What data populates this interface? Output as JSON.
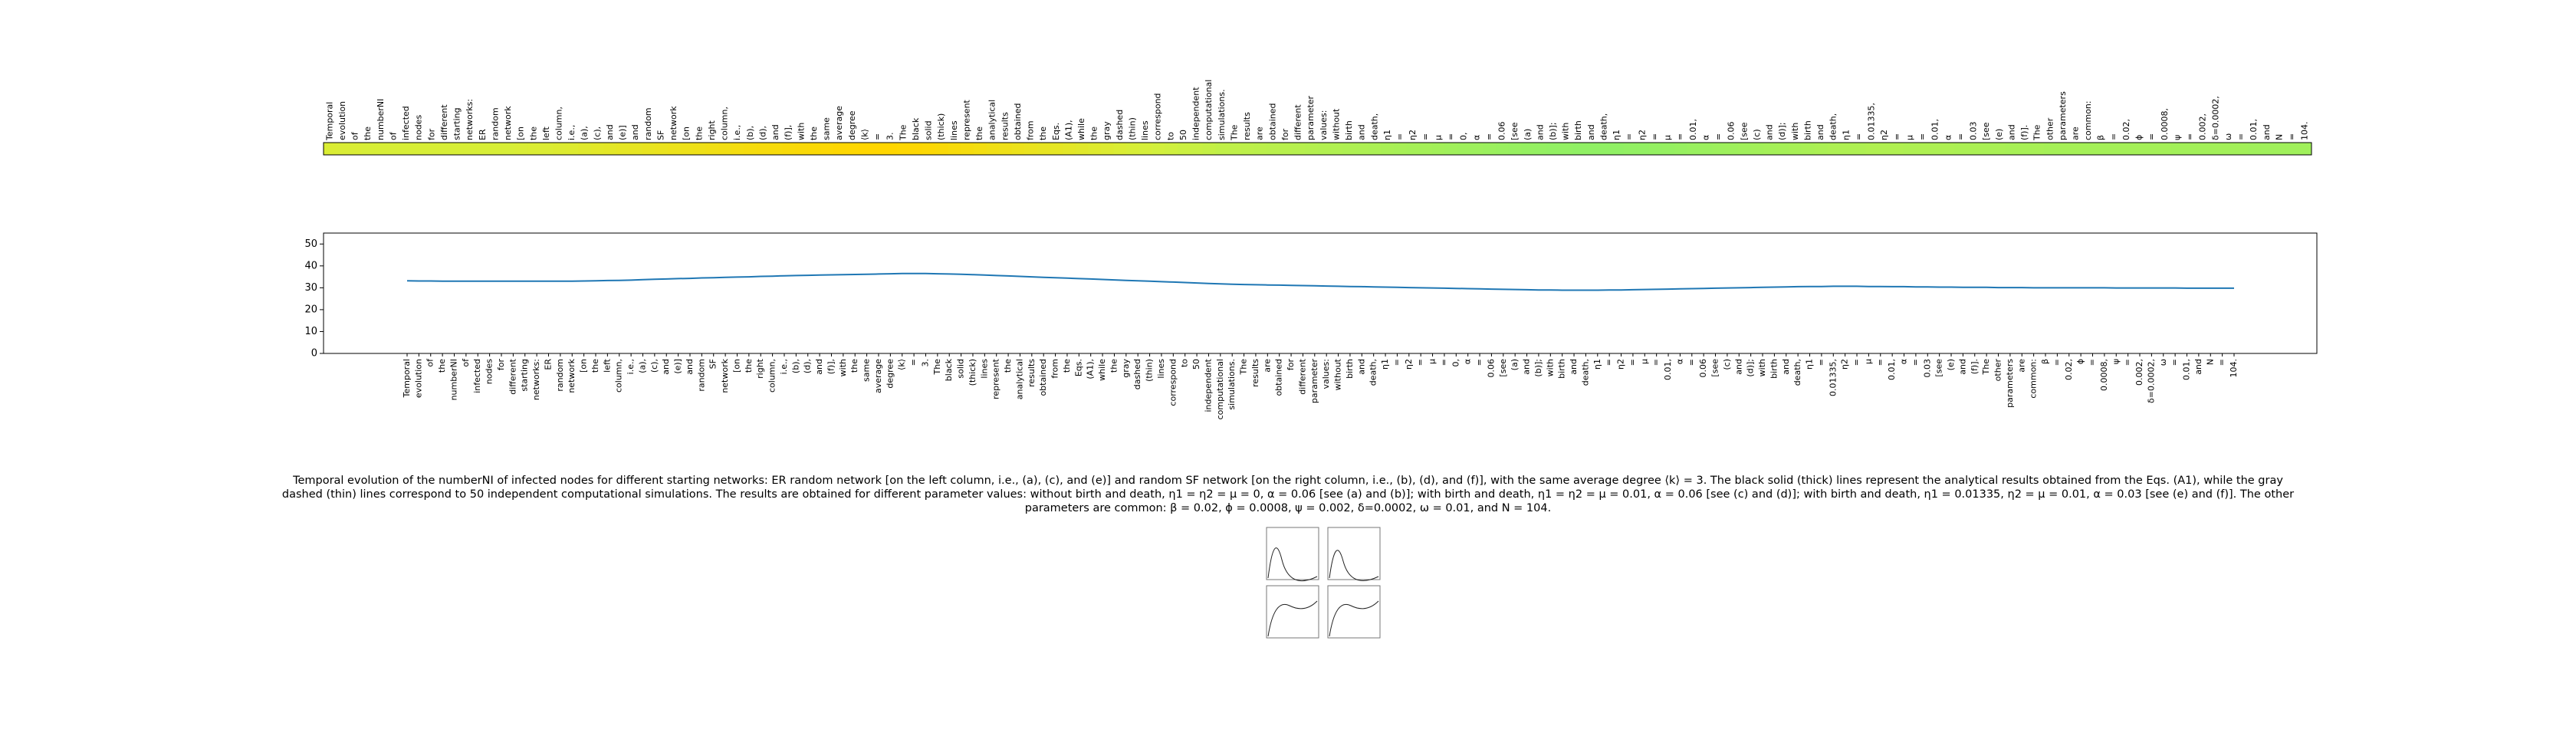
{
  "chart_data": {
    "type": "line",
    "categories": [
      "Temporal",
      "evolution",
      "of",
      "the",
      "numberNI",
      "of",
      "infected",
      "nodes",
      "for",
      "different",
      "starting",
      "networks:",
      "ER",
      "random",
      "network",
      "[on",
      "the",
      "left",
      "column,",
      "i.e.,",
      "(a),",
      "(c),",
      "and",
      "(e)]",
      "and",
      "random",
      "SF",
      "network",
      "[on",
      "the",
      "right",
      "column,",
      "i.e.,",
      "(b),",
      "(d),",
      "and",
      "(f)],",
      "with",
      "the",
      "same",
      "average",
      "degree",
      "⟨k⟩",
      "=",
      "3.",
      "The",
      "black",
      "solid",
      "(thick)",
      "lines",
      "represent",
      "the",
      "analytical",
      "results",
      "obtained",
      "from",
      "the",
      "Eqs.",
      "(A1),",
      "while",
      "the",
      "gray",
      "dashed",
      "(thin)",
      "lines",
      "correspond",
      "to",
      "50",
      "independent",
      "computational",
      "simulations.",
      "The",
      "results",
      "are",
      "obtained",
      "for",
      "different",
      "parameter",
      "values:",
      "without",
      "birth",
      "and",
      "death,",
      "η1",
      "=",
      "η2",
      "=",
      "μ",
      "=",
      "0,",
      "α",
      "=",
      "0.06",
      "[see",
      "(a)",
      "and",
      "(b)];",
      "with",
      "birth",
      "and",
      "death,",
      "η1",
      "=",
      "η2",
      "=",
      "μ",
      "=",
      "0.01,",
      "α",
      "=",
      "0.06",
      "[see",
      "(c)",
      "and",
      "(d)];",
      "with",
      "birth",
      "and",
      "death,",
      "η1",
      "=",
      "0.01335,",
      "η2",
      "=",
      "μ",
      "=",
      "0.01,",
      "α",
      "=",
      "0.03",
      "[see",
      "(e)",
      "and",
      "(f)].",
      "The",
      "other",
      "parameters",
      "are",
      "common:",
      "β",
      "=",
      "0.02,",
      "ϕ",
      "=",
      "0.0008,",
      "ψ",
      "=",
      "0.002,",
      "δ=0.0002,",
      "ω",
      "=",
      "0.01,",
      "and",
      "N",
      "=",
      "104."
    ],
    "series": [
      {
        "color": "#1f77b4",
        "values": [
          33.2,
          33.1,
          33.1,
          33.0,
          33.0,
          33.0,
          33.0,
          33.0,
          33.0,
          33.0,
          33.0,
          33.0,
          33.0,
          33.0,
          33.0,
          33.1,
          33.2,
          33.3,
          33.4,
          33.5,
          33.7,
          33.9,
          34.0,
          34.2,
          34.3,
          34.5,
          34.6,
          34.8,
          34.9,
          35.0,
          35.2,
          35.3,
          35.5,
          35.6,
          35.7,
          35.8,
          35.9,
          36.0,
          36.1,
          36.2,
          36.3,
          36.4,
          36.5,
          36.5,
          36.5,
          36.4,
          36.3,
          36.2,
          36.0,
          35.8,
          35.6,
          35.4,
          35.2,
          35.0,
          34.8,
          34.6,
          34.4,
          34.2,
          34.0,
          33.8,
          33.6,
          33.4,
          33.2,
          33.0,
          32.8,
          32.6,
          32.4,
          32.2,
          32.0,
          31.8,
          31.6,
          31.5,
          31.4,
          31.3,
          31.2,
          31.1,
          31.0,
          30.9,
          30.8,
          30.7,
          30.6,
          30.5,
          30.4,
          30.3,
          30.2,
          30.1,
          30.0,
          29.9,
          29.8,
          29.7,
          29.6,
          29.5,
          29.4,
          29.3,
          29.2,
          29.1,
          29.0,
          29.0,
          28.9,
          28.9,
          28.9,
          28.9,
          29.0,
          29.0,
          29.1,
          29.2,
          29.3,
          29.4,
          29.5,
          29.6,
          29.7,
          29.8,
          29.9,
          30.0,
          30.1,
          30.2,
          30.3,
          30.4,
          30.5,
          30.6,
          30.6,
          30.7,
          30.7,
          30.7,
          30.6,
          30.6,
          30.5,
          30.5,
          30.4,
          30.4,
          30.3,
          30.3,
          30.2,
          30.2,
          30.2,
          30.1,
          30.1,
          30.1,
          30.0,
          30.0,
          30.0,
          30.0,
          30.0,
          30.0,
          30.0,
          29.9,
          29.9,
          29.9,
          29.9,
          29.9,
          29.9,
          29.8,
          29.8,
          29.8,
          29.8,
          29.8
        ]
      }
    ],
    "ylim": [
      0,
      55
    ],
    "yticks": [
      0,
      10,
      20,
      30,
      40,
      50
    ]
  },
  "caption": "Temporal evolution of the numberNI of infected nodes for different starting networks: ER random network [on the left column, i.e., (a), (c), and (e)] and random SF network [on the right column, i.e., (b), (d), and (f)], with the same average degree ⟨k⟩ = 3. The black solid (thick) lines represent the analytical results obtained from the Eqs. (A1), while the gray dashed (thin) lines correspond to 50 independent computational simulations. The results are obtained for different parameter values: without birth and death, η1 = η2 = μ = 0, α = 0.06 [see (a) and (b)]; with birth and death, η1 = η2 = μ = 0.01, α = 0.06 [see (c) and (d)]; with birth and death, η1 = 0.01335, η2 = μ = 0.01, α = 0.03 [see (e) and (f)]. The other parameters are common: β = 0.02, ϕ = 0.0008, ψ = 0.002, δ=0.0002, ω = 0.01, and N = 104."
}
